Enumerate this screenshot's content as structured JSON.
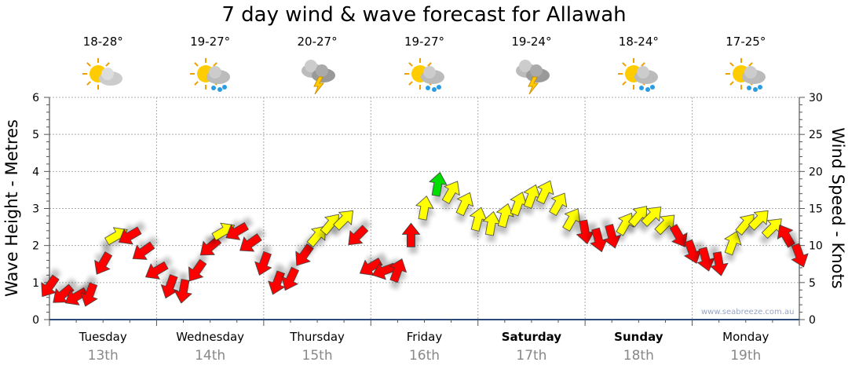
{
  "title": "7 day wind & wave forecast for Allawah",
  "credit": "www.seabreeze.com.au",
  "days": [
    {
      "day": "Tuesday",
      "date": "13th",
      "temps": "18-28°",
      "icon": "sun-cloud-icon",
      "weekend": false
    },
    {
      "day": "Wednesday",
      "date": "14th",
      "temps": "19-27°",
      "icon": "sun-cloud-rain-icon",
      "weekend": false
    },
    {
      "day": "Thursday",
      "date": "15th",
      "temps": "20-27°",
      "icon": "storm-cloud-icon",
      "weekend": false
    },
    {
      "day": "Friday",
      "date": "16th",
      "temps": "19-27°",
      "icon": "sun-cloud-rain-icon",
      "weekend": false
    },
    {
      "day": "Saturday",
      "date": "17th",
      "temps": "19-24°",
      "icon": "storm-cloud-icon",
      "weekend": true
    },
    {
      "day": "Sunday",
      "date": "18th",
      "temps": "18-24°",
      "icon": "sun-cloud-rain-icon",
      "weekend": true
    },
    {
      "day": "Monday",
      "date": "19th",
      "temps": "17-25°",
      "icon": "sun-cloud-rain-icon",
      "weekend": false
    }
  ],
  "chart_data": {
    "type": "scatter",
    "title": "7 day wind & wave forecast for Allawah",
    "ylabel": "Wave Height - Metres",
    "y2label": "Wind Speed - Knots",
    "ylim": [
      0,
      6
    ],
    "y2lim": [
      0,
      30
    ],
    "yticks": [
      "0",
      "1",
      "2",
      "3",
      "4",
      "5",
      "6"
    ],
    "y2ticks": [
      "0",
      "5",
      "10",
      "15",
      "20",
      "25",
      "30"
    ],
    "grid": true,
    "x_step_hours": 3,
    "colors": {
      "red": "#ff0000",
      "yellow": "#ffff00",
      "green": "#00dd00"
    },
    "wind": [
      {
        "kn": 4.5,
        "dir": 215,
        "c": "red"
      },
      {
        "kn": 3.4,
        "dir": 230,
        "c": "red"
      },
      {
        "kn": 3.1,
        "dir": 240,
        "c": "red"
      },
      {
        "kn": 3.4,
        "dir": 200,
        "c": "red"
      },
      {
        "kn": 7.6,
        "dir": 210,
        "c": "red"
      },
      {
        "kn": 11.3,
        "dir": 60,
        "c": "yellow"
      },
      {
        "kn": 11.3,
        "dir": 240,
        "c": "red"
      },
      {
        "kn": 9.2,
        "dir": 235,
        "c": "red"
      },
      {
        "kn": 6.6,
        "dir": 240,
        "c": "red"
      },
      {
        "kn": 4.5,
        "dir": 200,
        "c": "red"
      },
      {
        "kn": 3.9,
        "dir": 190,
        "c": "red"
      },
      {
        "kn": 6.6,
        "dir": 215,
        "c": "red"
      },
      {
        "kn": 9.8,
        "dir": 230,
        "c": "red"
      },
      {
        "kn": 11.9,
        "dir": 60,
        "c": "yellow"
      },
      {
        "kn": 11.9,
        "dir": 240,
        "c": "red"
      },
      {
        "kn": 10.3,
        "dir": 235,
        "c": "red"
      },
      {
        "kn": 7.6,
        "dir": 200,
        "c": "red"
      },
      {
        "kn": 5.0,
        "dir": 200,
        "c": "red"
      },
      {
        "kn": 5.5,
        "dir": 205,
        "c": "red"
      },
      {
        "kn": 8.7,
        "dir": 215,
        "c": "red"
      },
      {
        "kn": 11.3,
        "dir": 40,
        "c": "yellow"
      },
      {
        "kn": 12.9,
        "dir": 40,
        "c": "yellow"
      },
      {
        "kn": 13.5,
        "dir": 45,
        "c": "yellow"
      },
      {
        "kn": 11.3,
        "dir": 225,
        "c": "red"
      },
      {
        "kn": 7.1,
        "dir": 240,
        "c": "red"
      },
      {
        "kn": 6.6,
        "dir": 250,
        "c": "red"
      },
      {
        "kn": 6.6,
        "dir": 20,
        "c": "red"
      },
      {
        "kn": 11.3,
        "dir": 0,
        "c": "red"
      },
      {
        "kn": 15.0,
        "dir": 10,
        "c": "yellow"
      },
      {
        "kn": 18.2,
        "dir": 10,
        "c": "green"
      },
      {
        "kn": 17.2,
        "dir": 30,
        "c": "yellow"
      },
      {
        "kn": 15.6,
        "dir": 25,
        "c": "yellow"
      },
      {
        "kn": 13.5,
        "dir": 15,
        "c": "yellow"
      },
      {
        "kn": 12.9,
        "dir": 10,
        "c": "yellow"
      },
      {
        "kn": 14.0,
        "dir": 15,
        "c": "yellow"
      },
      {
        "kn": 15.6,
        "dir": 20,
        "c": "yellow"
      },
      {
        "kn": 16.6,
        "dir": 20,
        "c": "yellow"
      },
      {
        "kn": 17.2,
        "dir": 25,
        "c": "yellow"
      },
      {
        "kn": 15.6,
        "dir": 30,
        "c": "yellow"
      },
      {
        "kn": 13.5,
        "dir": 30,
        "c": "yellow"
      },
      {
        "kn": 11.9,
        "dir": 170,
        "c": "red"
      },
      {
        "kn": 10.8,
        "dir": 165,
        "c": "red"
      },
      {
        "kn": 11.3,
        "dir": 165,
        "c": "red"
      },
      {
        "kn": 12.9,
        "dir": 30,
        "c": "yellow"
      },
      {
        "kn": 14.0,
        "dir": 40,
        "c": "yellow"
      },
      {
        "kn": 14.0,
        "dir": 45,
        "c": "yellow"
      },
      {
        "kn": 12.9,
        "dir": 45,
        "c": "yellow"
      },
      {
        "kn": 11.3,
        "dir": 150,
        "c": "red"
      },
      {
        "kn": 9.2,
        "dir": 160,
        "c": "red"
      },
      {
        "kn": 8.2,
        "dir": 165,
        "c": "red"
      },
      {
        "kn": 7.6,
        "dir": 170,
        "c": "red"
      },
      {
        "kn": 10.3,
        "dir": 20,
        "c": "yellow"
      },
      {
        "kn": 12.9,
        "dir": 40,
        "c": "yellow"
      },
      {
        "kn": 13.5,
        "dir": 45,
        "c": "yellow"
      },
      {
        "kn": 12.4,
        "dir": 45,
        "c": "yellow"
      },
      {
        "kn": 11.3,
        "dir": 330,
        "c": "red"
      },
      {
        "kn": 8.7,
        "dir": 160,
        "c": "red"
      }
    ]
  }
}
